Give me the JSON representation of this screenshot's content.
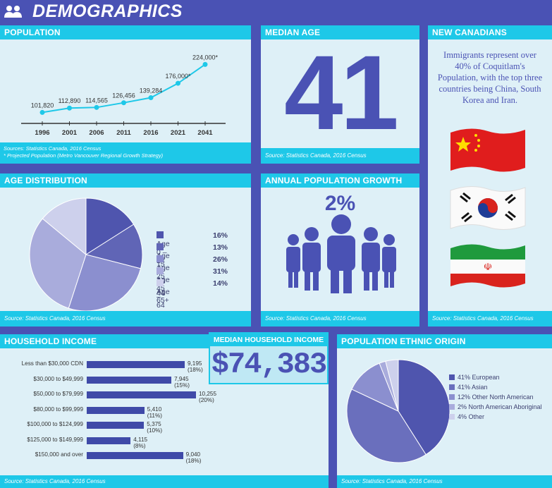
{
  "header": {
    "title": "DEMOGRAPHICS"
  },
  "population": {
    "title": "POPULATION",
    "points": [
      {
        "year": "1996",
        "value": "101,820"
      },
      {
        "year": "2001",
        "value": "112,890"
      },
      {
        "year": "2006",
        "value": "114,565"
      },
      {
        "year": "2011",
        "value": "126,456"
      },
      {
        "year": "2016",
        "value": "139,284"
      },
      {
        "year": "2021",
        "value": "176,000*"
      },
      {
        "year": "2041",
        "value": "224,000*"
      }
    ],
    "source1": "Sources: Statistics Canada, 2016 Census",
    "source2": "* Projected Population (Metro Vancouver Regional Growth Strategy)"
  },
  "median_age": {
    "title": "MEDIAN AGE",
    "value": "41",
    "source": "Source: Statistics Canada, 2016 Census"
  },
  "new_canadians": {
    "title": "NEW CANADIANS",
    "text": "Immigrants represent over 40% of Coquitlam's Population, with the top three countries being China, South Korea and Iran.",
    "source": "Source: Statistics Canada, 2016 Census"
  },
  "age_distribution": {
    "title": "AGE DISTRIBUTION",
    "source": "Source: Statistics Canada, 2016 Census",
    "items": [
      {
        "label": "Age 0 – 14",
        "pct": "16%",
        "value": 16,
        "color": "#4f55ae"
      },
      {
        "label": "Age 15 – 24",
        "pct": "13%",
        "value": 13,
        "color": "#6065b6"
      },
      {
        "label": "Age 25 – 44",
        "pct": "26%",
        "value": 26,
        "color": "#8b8fcf"
      },
      {
        "label": "Age 45 – 64",
        "pct": "31%",
        "value": 31,
        "color": "#a9acdc"
      },
      {
        "label": "Age 65+",
        "pct": "14%",
        "value": 14,
        "color": "#cdd0ec"
      }
    ]
  },
  "annual_growth": {
    "title": "ANNUAL POPULATION GROWTH",
    "value": "2%",
    "source": "Source: Statistics Canada, 2016 Census"
  },
  "household_income": {
    "title": "HOUSEHOLD INCOME",
    "source": "Source: Statistics Canada, 2016 Census",
    "rows": [
      {
        "label": "Less than $30,000 CDN",
        "value": "9,195 (18%)",
        "n": 9195
      },
      {
        "label": "$30,000 to $49,999",
        "value": "7,945 (15%)",
        "n": 7945
      },
      {
        "label": "$50,000 to $79,999",
        "value": "10,255 (20%)",
        "n": 10255
      },
      {
        "label": "$80,000 to $99,999",
        "value": "5,410 (11%)",
        "n": 5410
      },
      {
        "label": "$100,000 to $124,999",
        "value": "5,375 (10%)",
        "n": 5375
      },
      {
        "label": "$125,000 to $149,999",
        "value": "4,115 (8%)",
        "n": 4115
      },
      {
        "label": "$150,000 and over",
        "value": "9,040 (18%)",
        "n": 9040
      }
    ]
  },
  "median_income": {
    "title": "MEDIAN HOUSEHOLD INCOME",
    "value": "$74,383"
  },
  "ethnic_origin": {
    "title": "POPULATION ETHNIC ORIGIN",
    "source": "Source: Statistics Canada, 2016 Census",
    "items": [
      {
        "label": "41% European",
        "value": 41,
        "color": "#4f55ae"
      },
      {
        "label": "41% Asian",
        "value": 41,
        "color": "#6a6fbd"
      },
      {
        "label": "12% Other North American",
        "value": 12,
        "color": "#8b8fcf"
      },
      {
        "label": "2% North American Aboriginal",
        "value": 2,
        "color": "#a9acdc"
      },
      {
        "label": "4% Other",
        "value": 4,
        "color": "#cdd0ec"
      }
    ]
  },
  "chart_data": [
    {
      "type": "line",
      "title": "POPULATION",
      "x": [
        "1996",
        "2001",
        "2006",
        "2011",
        "2016",
        "2021",
        "2041"
      ],
      "values": [
        101820,
        112890,
        114565,
        126456,
        139284,
        176000,
        224000
      ]
    },
    {
      "type": "pie",
      "title": "AGE DISTRIBUTION",
      "categories": [
        "Age 0 – 14",
        "Age 15 – 24",
        "Age 25 – 44",
        "Age 45 – 64",
        "Age 65+"
      ],
      "values": [
        16,
        13,
        26,
        31,
        14
      ]
    },
    {
      "type": "bar",
      "title": "HOUSEHOLD INCOME",
      "categories": [
        "Less than $30,000 CDN",
        "$30,000 to $49,999",
        "$50,000 to $79,999",
        "$80,000 to $99,999",
        "$100,000 to $124,999",
        "$125,000 to $149,999",
        "$150,000 and over"
      ],
      "values": [
        9195,
        7945,
        10255,
        5410,
        5375,
        4115,
        9040
      ]
    },
    {
      "type": "pie",
      "title": "POPULATION ETHNIC ORIGIN",
      "categories": [
        "European",
        "Asian",
        "Other North American",
        "North American Aboriginal",
        "Other"
      ],
      "values": [
        41,
        41,
        12,
        2,
        4
      ]
    }
  ]
}
